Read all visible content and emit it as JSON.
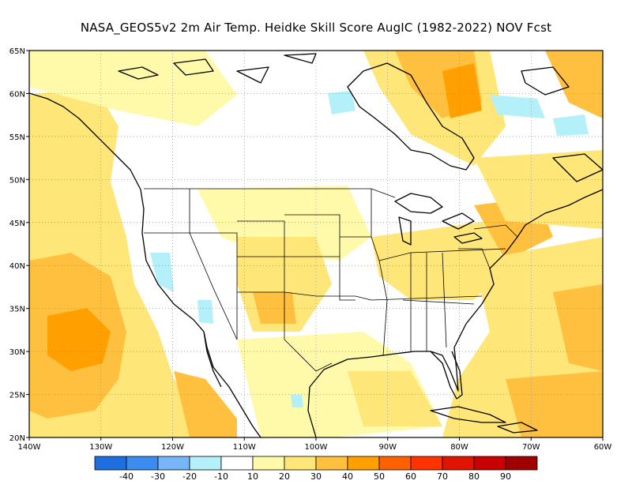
{
  "title": "NASA_GEOS5v2  2m Air Temp. Heidke Skill Score AugIC (1982-2022) NOV Fcst",
  "axes": {
    "lat_labels": [
      "65N",
      "60N",
      "55N",
      "50N",
      "45N",
      "40N",
      "35N",
      "30N",
      "25N",
      "20N"
    ],
    "lat_values": [
      65,
      60,
      55,
      50,
      45,
      40,
      35,
      30,
      25,
      20
    ],
    "lon_labels": [
      "140W",
      "130W",
      "120W",
      "110W",
      "100W",
      "90W",
      "80W",
      "70W",
      "60W"
    ],
    "lon_values": [
      -140,
      -130,
      -120,
      -110,
      -100,
      -90,
      -80,
      -70,
      -60
    ]
  },
  "extent": {
    "lon_min": -140,
    "lon_max": -60,
    "lat_min": 20,
    "lat_max": 65
  },
  "colorbar": {
    "labels": [
      "-40",
      "-30",
      "-20",
      "-10",
      "10",
      "20",
      "30",
      "40",
      "50",
      "60",
      "70",
      "80",
      "90"
    ],
    "colors": [
      "#1e6ee0",
      "#3c8cf0",
      "#78b4f8",
      "#b4f0fa",
      "#ffffff",
      "#fffaaa",
      "#ffe678",
      "#ffc040",
      "#ffa000",
      "#ff6000",
      "#ff3200",
      "#e11400",
      "#c80000",
      "#a00000"
    ]
  },
  "colors": {
    "frame": "#000000",
    "grid": "#888888",
    "coast": "#000000"
  }
}
